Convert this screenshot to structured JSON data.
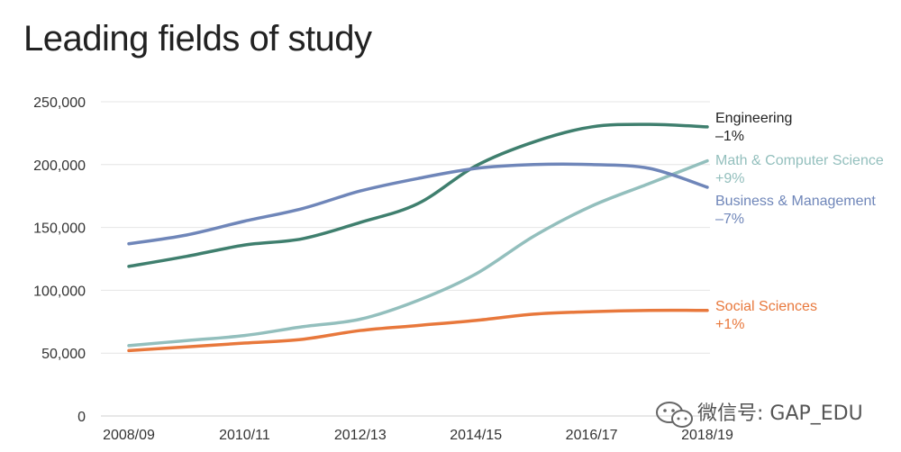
{
  "chart_data": {
    "type": "line",
    "title": "Leading fields of study",
    "x": [
      "2008/09",
      "2009/10",
      "2010/11",
      "2011/12",
      "2012/13",
      "2013/14",
      "2014/15",
      "2015/16",
      "2016/17",
      "2017/18",
      "2018/19"
    ],
    "x_tick_labels": [
      "2008/09",
      "2010/11",
      "2012/13",
      "2014/15",
      "2016/17",
      "2018/19"
    ],
    "y_tick_labels": [
      "0",
      "50,000",
      "100,000",
      "150,000",
      "200,000",
      "250,000"
    ],
    "ylim": [
      0,
      250000
    ],
    "grid": "horizontal",
    "legend": "right-end labels",
    "series": [
      {
        "name": "Engineering",
        "change": "–1%",
        "color": "#3f7f6e",
        "values": [
          119000,
          127000,
          136000,
          141000,
          154000,
          169000,
          199000,
          218000,
          230000,
          232000,
          230000
        ]
      },
      {
        "name": "Math & Computer Science",
        "change": "+9%",
        "color": "#93bfbd",
        "values": [
          56000,
          60000,
          64000,
          71000,
          77000,
          92000,
          113000,
          143000,
          167000,
          185000,
          203000
        ]
      },
      {
        "name": "Business & Management",
        "change": "–7%",
        "color": "#6f86b9",
        "values": [
          137000,
          144000,
          155000,
          165000,
          179000,
          189000,
          197000,
          200000,
          200000,
          197000,
          182000
        ]
      },
      {
        "name": "Social Sciences",
        "change": "+1%",
        "color": "#e8783c",
        "values": [
          52000,
          55000,
          58000,
          61000,
          68000,
          72000,
          76000,
          81000,
          83000,
          84000,
          84000
        ]
      }
    ]
  },
  "watermark": {
    "text": "微信号: GAP_EDU",
    "icon": "wechat-icon"
  }
}
